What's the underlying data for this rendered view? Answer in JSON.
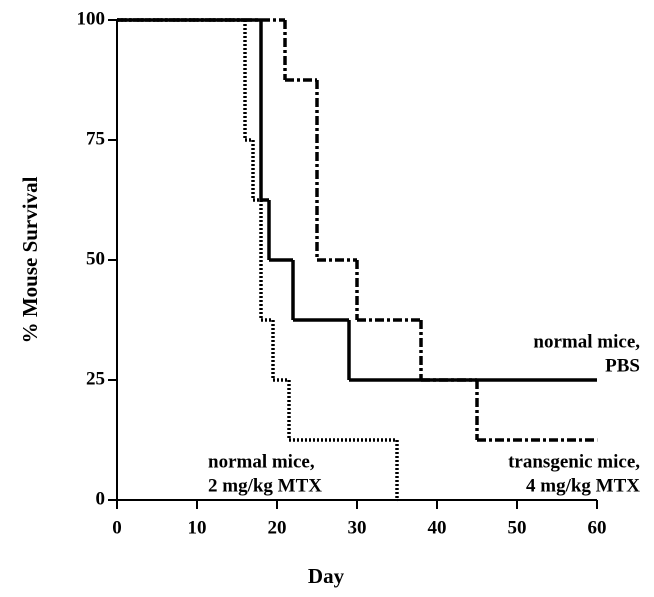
{
  "chart_data": {
    "type": "step",
    "xlabel": "Day",
    "ylabel": "% Mouse Survival",
    "xlim": [
      0,
      60
    ],
    "xticks": [
      0,
      10,
      20,
      30,
      40,
      50,
      60
    ],
    "ylim": [
      0,
      100
    ],
    "yticks": [
      0,
      25,
      50,
      75,
      100
    ],
    "series": [
      {
        "label": [
          "normal mice,",
          "PBS"
        ],
        "color": "#000000",
        "style": "solid",
        "x": [
          0,
          18,
          19,
          22,
          29,
          60
        ],
        "values": [
          100,
          62.5,
          50,
          37.5,
          25,
          25
        ]
      },
      {
        "label": [
          "normal mice,",
          "2 mg/kg MTX"
        ],
        "color": "#000000",
        "style": "dotted",
        "x": [
          0,
          16,
          17,
          18,
          19.5,
          21.5,
          35
        ],
        "values": [
          100,
          75,
          62.5,
          37.5,
          25,
          12.5,
          0
        ]
      },
      {
        "label": [
          "transgenic mice,",
          "4 mg/kg MTX"
        ],
        "color": "#000000",
        "style": "dashdot",
        "x": [
          0,
          21,
          25,
          30,
          38,
          45,
          60
        ],
        "values": [
          100,
          87.5,
          50,
          37.5,
          25,
          12.5,
          12.5
        ]
      }
    ]
  }
}
